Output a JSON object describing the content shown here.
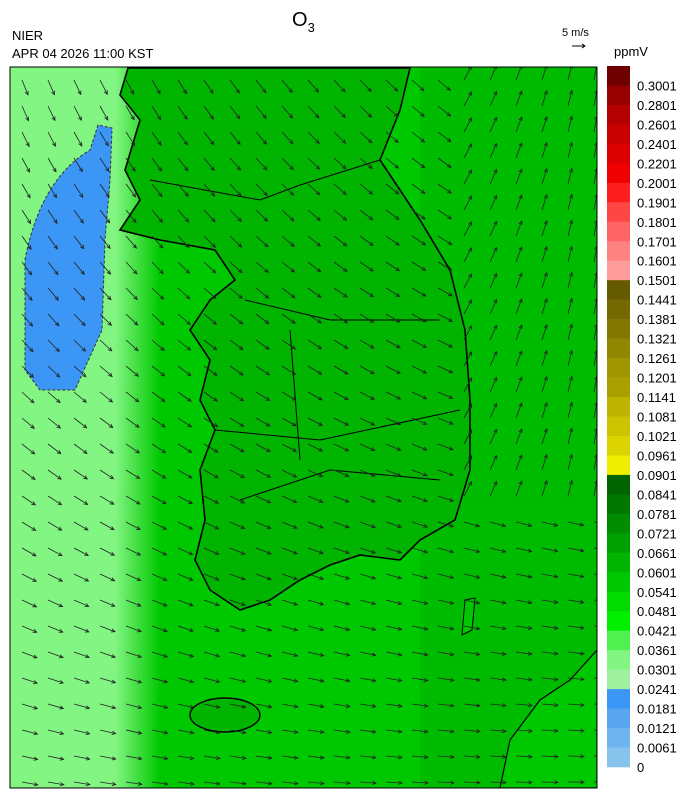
{
  "header": {
    "title": "O",
    "title_subscript": "3",
    "agency": "NIER",
    "timestamp": "APR 04 2026 11:00 KST",
    "wind_scale": "5 m/s"
  },
  "colorbar": {
    "unit": "ppmV",
    "labels": [
      "0.3001",
      "0.2801",
      "0.2601",
      "0.2401",
      "0.2201",
      "0.2001",
      "0.1901",
      "0.1801",
      "0.1701",
      "0.1601",
      "0.1501",
      "0.1441",
      "0.1381",
      "0.1321",
      "0.1261",
      "0.1201",
      "0.1141",
      "0.1081",
      "0.1021",
      "0.0961",
      "0.0901",
      "0.0841",
      "0.0781",
      "0.0721",
      "0.0661",
      "0.0601",
      "0.0541",
      "0.0481",
      "0.0421",
      "0.0361",
      "0.0301",
      "0.0241",
      "0.0181",
      "0.0121",
      "0.0061",
      "0"
    ],
    "colors": [
      "#6e0000",
      "#960000",
      "#b40000",
      "#c80000",
      "#dc0000",
      "#f00000",
      "#ff1e1e",
      "#ff4646",
      "#ff6464",
      "#ff8282",
      "#ff9c9c",
      "#645a00",
      "#736900",
      "#827800",
      "#918700",
      "#a09600",
      "#aaa000",
      "#bcb400",
      "#ccc400",
      "#dcd400",
      "#eeee00",
      "#006400",
      "#007800",
      "#008c00",
      "#00a000",
      "#00b400",
      "#00c800",
      "#00dc00",
      "#00f000",
      "#50f050",
      "#82f582",
      "#a0f0a0",
      "#3c96f5",
      "#5aa5f0",
      "#6eb4f0",
      "#87c3eb"
    ]
  }
}
